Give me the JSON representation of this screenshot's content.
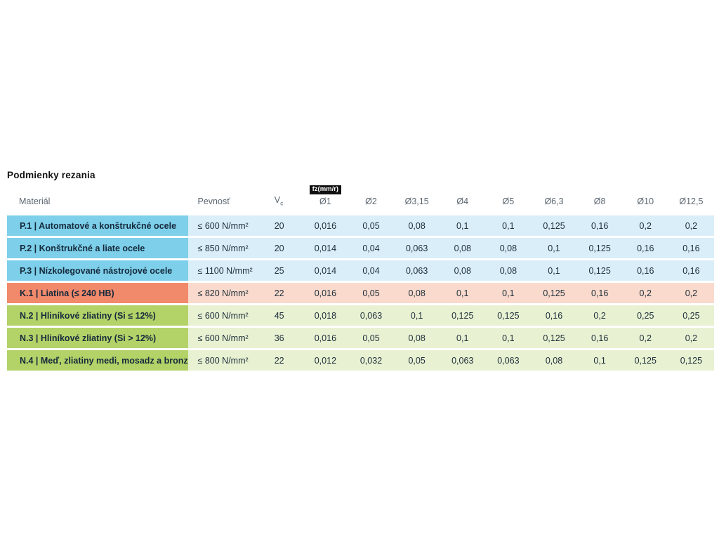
{
  "page": {
    "title": "Podmienky rezania"
  },
  "colors": {
    "steel_material_bg": "#7dcfea",
    "steel_row_bg": "#d9eef8",
    "cast_iron_material_bg": "#f1896b",
    "cast_iron_row_bg": "#f9dacc",
    "nonferrous_material_bg": "#b3d369",
    "nonferrous_row_bg": "#e8f1d2",
    "badge_bg": "#101010",
    "badge_text": "#ffffff",
    "header_text": "#5b6670",
    "body_text": "#1d2d3a"
  },
  "table": {
    "headers": {
      "material": "Materiál",
      "strength": "Pevnosť",
      "vc_main": "V",
      "vc_sub": "c",
      "fz_badge": "fz(mm/r)",
      "diameters": [
        "Ø1",
        "Ø2",
        "Ø3,15",
        "Ø4",
        "Ø5",
        "Ø6,3",
        "Ø8",
        "Ø10",
        "Ø12,5"
      ]
    },
    "rows": [
      {
        "group": "p",
        "material": "P.1 | Automatové a konštrukčné ocele",
        "strength": "≤ 600 N/mm²",
        "vc": "20",
        "feeds": [
          "0,016",
          "0,05",
          "0,08",
          "0,1",
          "0,1",
          "0,125",
          "0,16",
          "0,2",
          "0,2"
        ]
      },
      {
        "group": "p",
        "material": "P.2 | Konštrukčné a liate ocele",
        "strength": "≤ 850 N/mm²",
        "vc": "20",
        "feeds": [
          "0,014",
          "0,04",
          "0,063",
          "0,08",
          "0,08",
          "0,1",
          "0,125",
          "0,16",
          "0,16"
        ]
      },
      {
        "group": "p",
        "material": "P.3 | Nízkolegované nástrojové ocele",
        "strength": "≤ 1100 N/mm²",
        "vc": "25",
        "feeds": [
          "0,014",
          "0,04",
          "0,063",
          "0,08",
          "0,08",
          "0,1",
          "0,125",
          "0,16",
          "0,16"
        ]
      },
      {
        "group": "k",
        "material": "K.1 | Liatina (≤ 240 HB)",
        "strength": "≤ 820 N/mm²",
        "vc": "22",
        "feeds": [
          "0,016",
          "0,05",
          "0,08",
          "0,1",
          "0,1",
          "0,125",
          "0,16",
          "0,2",
          "0,2"
        ]
      },
      {
        "group": "n",
        "material": "N.2 | Hliníkové zliatiny (Si ≤ 12%)",
        "strength": "≤ 600 N/mm²",
        "vc": "45",
        "feeds": [
          "0,018",
          "0,063",
          "0,1",
          "0,125",
          "0,125",
          "0,16",
          "0,2",
          "0,25",
          "0,25"
        ]
      },
      {
        "group": "n",
        "material": "N.3 | Hliníkové zliatiny (Si > 12%)",
        "strength": "≤ 600 N/mm²",
        "vc": "36",
        "feeds": [
          "0,016",
          "0,05",
          "0,08",
          "0,1",
          "0,1",
          "0,125",
          "0,16",
          "0,2",
          "0,2"
        ]
      },
      {
        "group": "n",
        "material": "N.4 | Meď, zliatiny medi, mosadz a bronz",
        "strength": "≤ 800 N/mm²",
        "vc": "22",
        "feeds": [
          "0,012",
          "0,032",
          "0,05",
          "0,063",
          "0,063",
          "0,08",
          "0,1",
          "0,125",
          "0,125"
        ]
      }
    ]
  }
}
